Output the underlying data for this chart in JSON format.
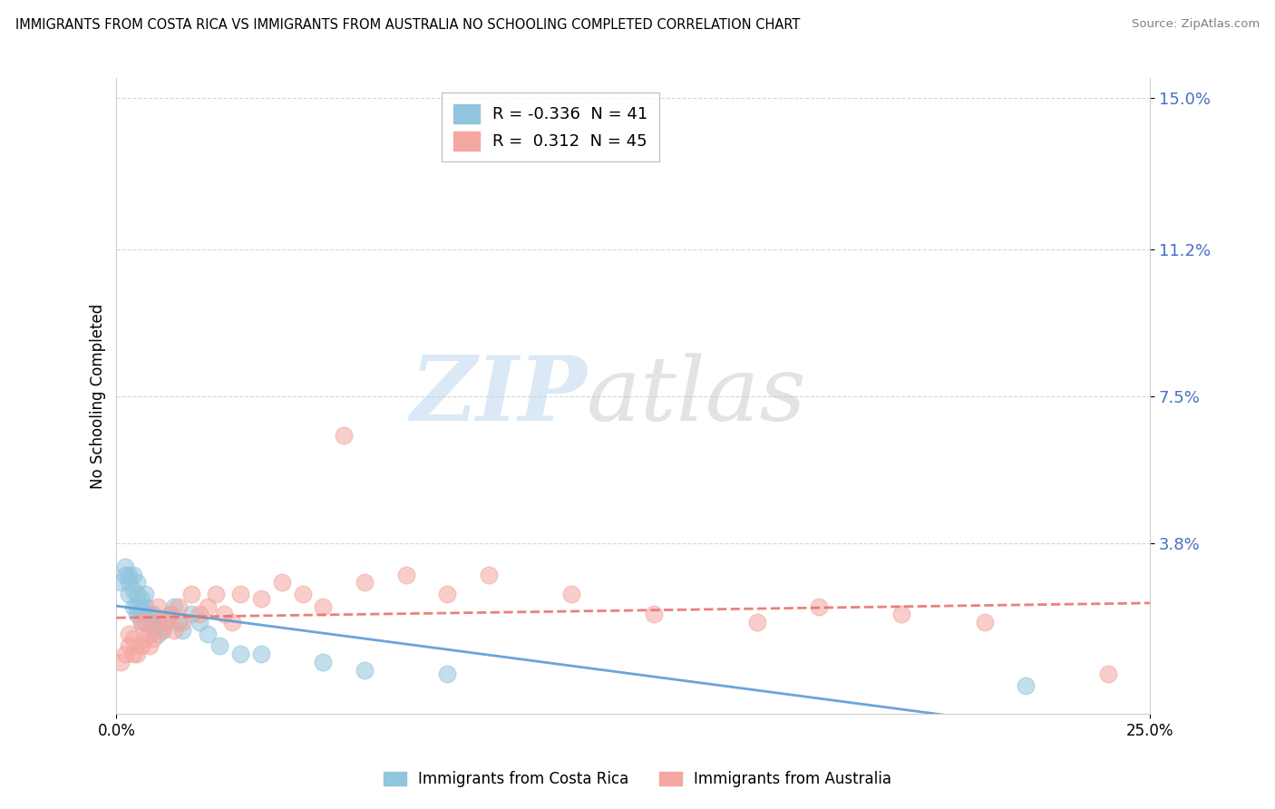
{
  "title": "IMMIGRANTS FROM COSTA RICA VS IMMIGRANTS FROM AUSTRALIA NO SCHOOLING COMPLETED CORRELATION CHART",
  "source": "Source: ZipAtlas.com",
  "ylabel": "No Schooling Completed",
  "xlim": [
    0.0,
    0.25
  ],
  "ylim": [
    -0.005,
    0.155
  ],
  "yticks": [
    0.038,
    0.075,
    0.112,
    0.15
  ],
  "ytick_labels": [
    "3.8%",
    "7.5%",
    "11.2%",
    "15.0%"
  ],
  "xticks": [
    0.0,
    0.25
  ],
  "xtick_labels": [
    "0.0%",
    "25.0%"
  ],
  "series1_color": "#92C5DE",
  "series2_color": "#F4A6A0",
  "series1_line_color": "#5B9BD5",
  "series2_line_color": "#E8736C",
  "series1_label": "Immigrants from Costa Rica",
  "series2_label": "Immigrants from Australia",
  "series1_R": -0.336,
  "series1_N": 41,
  "series2_R": 0.312,
  "series2_N": 45,
  "costa_rica_x": [
    0.001,
    0.002,
    0.002,
    0.003,
    0.003,
    0.003,
    0.004,
    0.004,
    0.004,
    0.005,
    0.005,
    0.005,
    0.005,
    0.006,
    0.006,
    0.006,
    0.007,
    0.007,
    0.007,
    0.008,
    0.008,
    0.009,
    0.009,
    0.01,
    0.01,
    0.011,
    0.012,
    0.013,
    0.014,
    0.015,
    0.016,
    0.018,
    0.02,
    0.022,
    0.025,
    0.03,
    0.035,
    0.05,
    0.06,
    0.08,
    0.22
  ],
  "costa_rica_y": [
    0.028,
    0.032,
    0.03,
    0.025,
    0.028,
    0.03,
    0.022,
    0.026,
    0.03,
    0.02,
    0.022,
    0.025,
    0.028,
    0.018,
    0.022,
    0.024,
    0.02,
    0.022,
    0.025,
    0.018,
    0.02,
    0.016,
    0.02,
    0.015,
    0.018,
    0.016,
    0.018,
    0.02,
    0.022,
    0.018,
    0.016,
    0.02,
    0.018,
    0.015,
    0.012,
    0.01,
    0.01,
    0.008,
    0.006,
    0.005,
    0.002
  ],
  "australia_x": [
    0.001,
    0.002,
    0.003,
    0.003,
    0.004,
    0.004,
    0.005,
    0.006,
    0.006,
    0.007,
    0.007,
    0.008,
    0.008,
    0.009,
    0.01,
    0.01,
    0.011,
    0.012,
    0.013,
    0.014,
    0.015,
    0.016,
    0.018,
    0.02,
    0.022,
    0.024,
    0.026,
    0.028,
    0.03,
    0.035,
    0.04,
    0.045,
    0.05,
    0.055,
    0.06,
    0.07,
    0.08,
    0.09,
    0.11,
    0.13,
    0.155,
    0.17,
    0.19,
    0.21,
    0.24
  ],
  "australia_y": [
    0.008,
    0.01,
    0.012,
    0.015,
    0.01,
    0.014,
    0.01,
    0.012,
    0.018,
    0.014,
    0.018,
    0.012,
    0.015,
    0.014,
    0.018,
    0.022,
    0.016,
    0.018,
    0.02,
    0.016,
    0.022,
    0.018,
    0.025,
    0.02,
    0.022,
    0.025,
    0.02,
    0.018,
    0.025,
    0.024,
    0.028,
    0.025,
    0.022,
    0.065,
    0.028,
    0.03,
    0.025,
    0.03,
    0.025,
    0.02,
    0.018,
    0.022,
    0.02,
    0.018,
    0.005
  ]
}
